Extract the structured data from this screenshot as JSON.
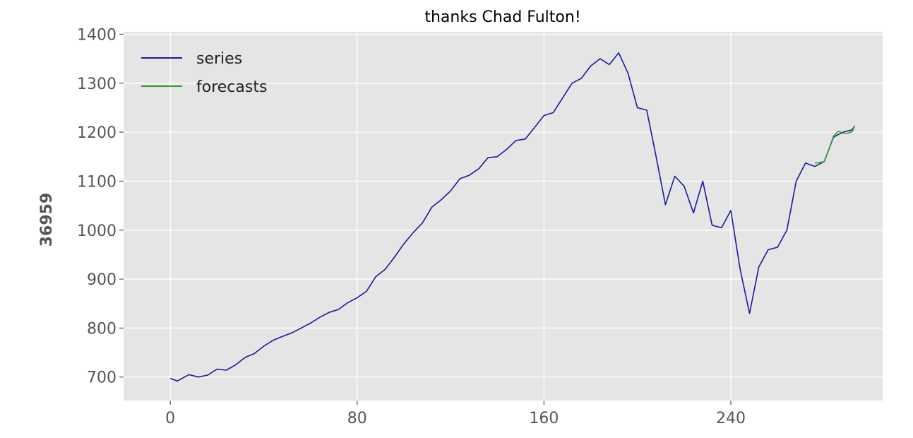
{
  "chart_data": {
    "type": "line",
    "title": "thanks Chad Fulton!",
    "xlabel": "",
    "ylabel": "36959",
    "xlim": [
      -20,
      305
    ],
    "ylim": [
      652,
      1405
    ],
    "xticks": [
      0,
      80,
      160,
      240
    ],
    "yticks": [
      700,
      800,
      900,
      1000,
      1100,
      1200,
      1300,
      1400
    ],
    "grid": true,
    "legend": "top-left",
    "series": [
      {
        "name": "series",
        "color": "#1a1a9c",
        "x": [
          0,
          3,
          8,
          12,
          16,
          20,
          24,
          28,
          32,
          36,
          40,
          44,
          48,
          52,
          56,
          60,
          64,
          68,
          72,
          76,
          80,
          84,
          88,
          92,
          96,
          100,
          104,
          108,
          112,
          116,
          120,
          124,
          128,
          132,
          136,
          140,
          144,
          148,
          152,
          156,
          160,
          164,
          168,
          172,
          176,
          180,
          184,
          188,
          192,
          196,
          200,
          204,
          208,
          212,
          216,
          220,
          224,
          228,
          232,
          236,
          240,
          244,
          248,
          252,
          256,
          260,
          264,
          268,
          272,
          276,
          280,
          284,
          288,
          292,
          293
        ],
        "values": [
          697,
          692,
          705,
          700,
          704,
          716,
          714,
          725,
          740,
          748,
          763,
          775,
          783,
          790,
          800,
          810,
          822,
          832,
          838,
          852,
          862,
          875,
          905,
          920,
          945,
          972,
          995,
          1015,
          1047,
          1062,
          1080,
          1105,
          1112,
          1125,
          1148,
          1150,
          1165,
          1183,
          1186,
          1210,
          1234,
          1240,
          1270,
          1300,
          1310,
          1335,
          1350,
          1338,
          1362,
          1320,
          1250,
          1245,
          1150,
          1052,
          1110,
          1090,
          1035,
          1100,
          1010,
          1005,
          1040,
          920,
          830,
          925,
          960,
          965,
          1000,
          1100,
          1137,
          1130,
          1140,
          1190,
          1200,
          1205,
          1213
        ]
      },
      {
        "name": "forecasts",
        "color": "#2e9a2e",
        "x": [
          276,
          278,
          280,
          282,
          284,
          286,
          288,
          290,
          292,
          293
        ],
        "values": [
          1137,
          1138,
          1140,
          1165,
          1192,
          1202,
          1198,
          1198,
          1201,
          1213
        ]
      }
    ]
  }
}
